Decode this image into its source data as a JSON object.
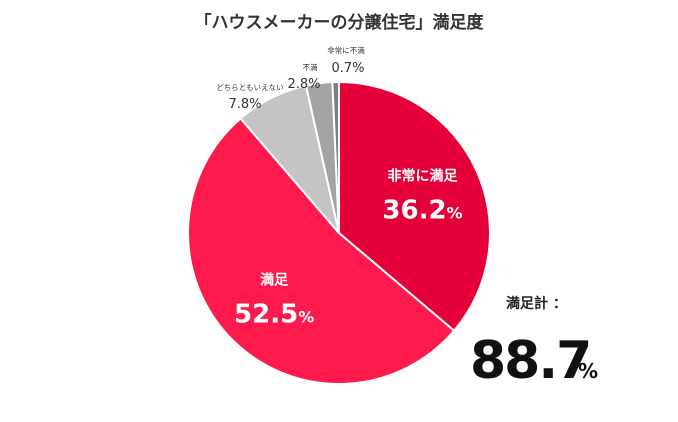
{
  "chart_data": {
    "type": "pie",
    "title": "「ハウスメーカーの分譲住宅」満足度",
    "categories": [
      "非常に満足",
      "満足",
      "どちらともいえない",
      "不満",
      "非常に不満"
    ],
    "values": [
      36.2,
      52.5,
      7.8,
      2.8,
      0.7
    ],
    "value_labels": [
      "36.2",
      "52.5",
      "7.8%",
      "2.8%",
      "0.7%"
    ],
    "unit": "%",
    "colors": [
      "#e60039",
      "#ff1a4d",
      "#c4c4c4",
      "#a3a3a3",
      "#7f7f7f"
    ],
    "start": "12 o'clock",
    "direction": "clockwise",
    "legend": "none"
  },
  "total": {
    "label": "満足計 ：",
    "value": "88.7",
    "unit": "%"
  }
}
